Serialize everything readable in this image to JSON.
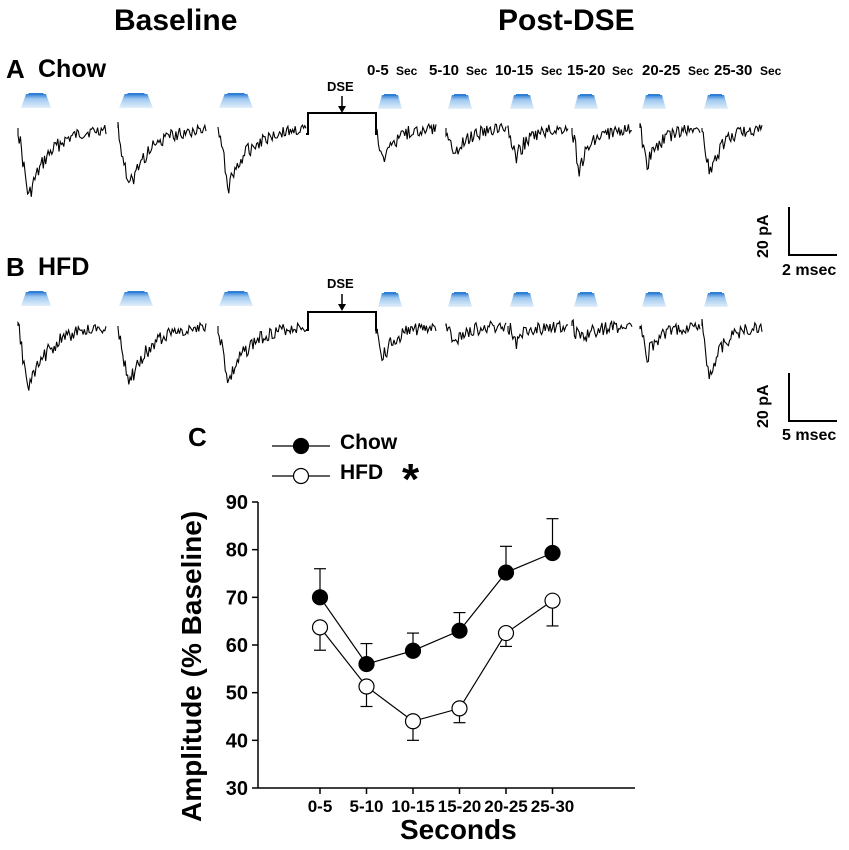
{
  "headers": {
    "baseline": "Baseline",
    "post_dse": "Post-DSE"
  },
  "panel_a": {
    "letter": "A",
    "label": "Chow"
  },
  "panel_b": {
    "letter": "B",
    "label": "HFD"
  },
  "panel_c": {
    "letter": "C"
  },
  "time_bins": [
    {
      "range": "0-5",
      "unit": "Sec"
    },
    {
      "range": "5-10",
      "unit": "Sec"
    },
    {
      "range": "10-15",
      "unit": "Sec"
    },
    {
      "range": "15-20",
      "unit": "Sec"
    },
    {
      "range": "20-25",
      "unit": "Sec"
    },
    {
      "range": "25-30",
      "unit": "Sec"
    }
  ],
  "dse_label": "DSE",
  "scale_bar_a": {
    "amplitude": "20 pA",
    "time": "2 msec"
  },
  "scale_bar_b": {
    "amplitude": "20 pA",
    "time": "5 msec"
  },
  "chart_data": {
    "type": "line",
    "title": "",
    "xlabel": "Seconds",
    "ylabel": "Amplitude (% Baseline)",
    "categories": [
      "0-5",
      "5-10",
      "10-15",
      "15-20",
      "20-25",
      "25-30"
    ],
    "ylim": [
      30,
      90
    ],
    "yticks": [
      30,
      40,
      50,
      60,
      70,
      80,
      90
    ],
    "legend_position": "top-left",
    "significance_marker": "*",
    "series": [
      {
        "name": "Chow",
        "marker": "filled-circle",
        "values": [
          70,
          56,
          58.8,
          63,
          75.2,
          79.3
        ],
        "errors": [
          6.0,
          4.3,
          3.7,
          3.8,
          5.5,
          7.2
        ]
      },
      {
        "name": "HFD",
        "marker": "open-circle",
        "values": [
          63.7,
          51.3,
          44,
          46.7,
          62.5,
          69.3
        ],
        "errors": [
          4.8,
          4.2,
          4.0,
          3.0,
          2.8,
          5.3
        ]
      }
    ]
  },
  "traces": {
    "chow": {
      "baseline_amplitudes": [
        70,
        62,
        58
      ],
      "post_amplitudes": [
        28,
        28,
        30,
        40,
        36,
        44
      ]
    },
    "hfd": {
      "baseline_amplitudes": [
        64,
        60,
        57
      ],
      "post_amplitudes": [
        32,
        16,
        16,
        14,
        30,
        50
      ]
    }
  }
}
